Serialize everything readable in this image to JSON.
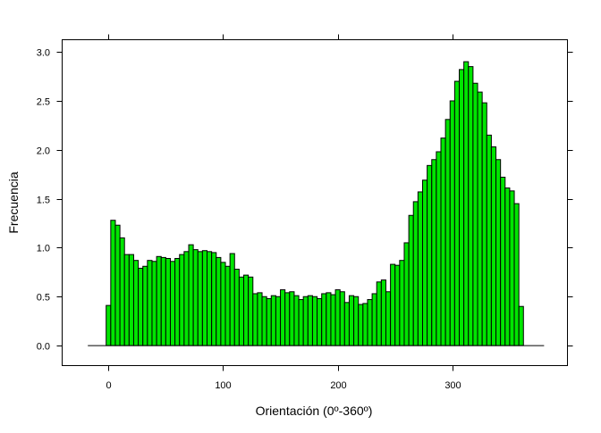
{
  "chart_data": {
    "type": "bar",
    "title": "",
    "xlabel": "Orientación (0º-360º)",
    "ylabel": "Frecuencia",
    "xlim": [
      -40,
      400
    ],
    "ylim": [
      -0.2,
      3.12
    ],
    "x_ticks": [
      0,
      100,
      200,
      300
    ],
    "x_tick_labels": [
      "0",
      "100",
      "200",
      "300"
    ],
    "y_ticks": [
      0.0,
      0.5,
      1.0,
      1.5,
      2.0,
      2.5,
      3.0
    ],
    "y_tick_labels": [
      "0.0",
      "0.5",
      "1.0",
      "1.5",
      "2.0",
      "2.5",
      "3.0"
    ],
    "baseline_range": [
      -18,
      380
    ],
    "bin_width": 4,
    "bin_start": -2,
    "values": [
      0.41,
      1.28,
      1.23,
      1.1,
      0.93,
      0.93,
      0.87,
      0.79,
      0.81,
      0.87,
      0.86,
      0.91,
      0.9,
      0.89,
      0.86,
      0.89,
      0.93,
      0.96,
      1.03,
      0.98,
      0.96,
      0.97,
      0.96,
      0.95,
      0.9,
      0.85,
      0.81,
      0.94,
      0.78,
      0.7,
      0.72,
      0.7,
      0.53,
      0.54,
      0.5,
      0.48,
      0.51,
      0.5,
      0.57,
      0.54,
      0.55,
      0.51,
      0.47,
      0.5,
      0.51,
      0.5,
      0.48,
      0.53,
      0.54,
      0.52,
      0.57,
      0.55,
      0.44,
      0.51,
      0.5,
      0.42,
      0.43,
      0.47,
      0.53,
      0.65,
      0.67,
      0.55,
      0.83,
      0.82,
      0.87,
      1.05,
      1.33,
      1.47,
      1.57,
      1.69,
      1.84,
      1.9,
      1.98,
      2.12,
      2.31,
      2.5,
      2.7,
      2.82,
      2.9,
      2.85,
      2.68,
      2.59,
      2.48,
      2.15,
      2.03,
      1.9,
      1.72,
      1.61,
      1.58,
      1.45,
      0.4
    ],
    "grid": false,
    "legend": "none",
    "colors": {
      "bar_fill": "#00e500",
      "bar_stroke": "#000000",
      "axis": "#000000",
      "background": "#ffffff"
    }
  }
}
